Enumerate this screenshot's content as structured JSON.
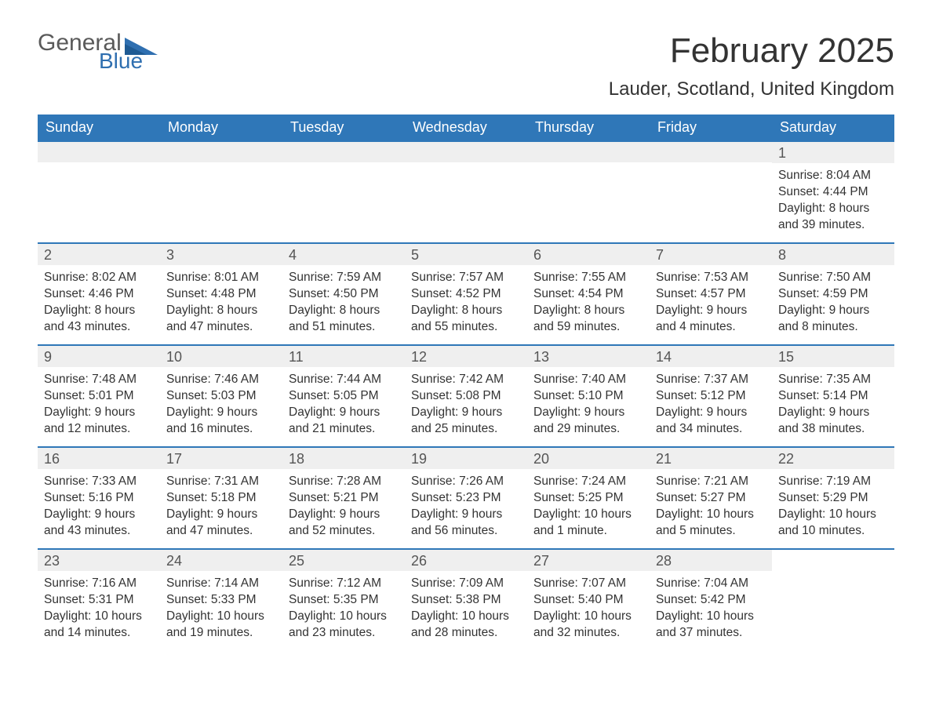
{
  "colors": {
    "header_bg": "#2f77b8",
    "header_text": "#ffffff",
    "day_num_bg": "#efefef",
    "day_num_text": "#555555",
    "border": "#2f77b8",
    "body_text": "#333333",
    "logo_gray": "#5a5a5a",
    "logo_blue": "#2f6fb0",
    "page_bg": "#ffffff"
  },
  "logo": {
    "word1": "General",
    "word2": "Blue"
  },
  "title": "February 2025",
  "location": "Lauder, Scotland, United Kingdom",
  "weekdays": [
    "Sunday",
    "Monday",
    "Tuesday",
    "Wednesday",
    "Thursday",
    "Friday",
    "Saturday"
  ],
  "layout": {
    "start_weekday_index": 6,
    "days_in_month": 28,
    "weeks": 5
  },
  "days": {
    "1": {
      "sunrise": "8:04 AM",
      "sunset": "4:44 PM",
      "daylight": "8 hours and 39 minutes."
    },
    "2": {
      "sunrise": "8:02 AM",
      "sunset": "4:46 PM",
      "daylight": "8 hours and 43 minutes."
    },
    "3": {
      "sunrise": "8:01 AM",
      "sunset": "4:48 PM",
      "daylight": "8 hours and 47 minutes."
    },
    "4": {
      "sunrise": "7:59 AM",
      "sunset": "4:50 PM",
      "daylight": "8 hours and 51 minutes."
    },
    "5": {
      "sunrise": "7:57 AM",
      "sunset": "4:52 PM",
      "daylight": "8 hours and 55 minutes."
    },
    "6": {
      "sunrise": "7:55 AM",
      "sunset": "4:54 PM",
      "daylight": "8 hours and 59 minutes."
    },
    "7": {
      "sunrise": "7:53 AM",
      "sunset": "4:57 PM",
      "daylight": "9 hours and 4 minutes."
    },
    "8": {
      "sunrise": "7:50 AM",
      "sunset": "4:59 PM",
      "daylight": "9 hours and 8 minutes."
    },
    "9": {
      "sunrise": "7:48 AM",
      "sunset": "5:01 PM",
      "daylight": "9 hours and 12 minutes."
    },
    "10": {
      "sunrise": "7:46 AM",
      "sunset": "5:03 PM",
      "daylight": "9 hours and 16 minutes."
    },
    "11": {
      "sunrise": "7:44 AM",
      "sunset": "5:05 PM",
      "daylight": "9 hours and 21 minutes."
    },
    "12": {
      "sunrise": "7:42 AM",
      "sunset": "5:08 PM",
      "daylight": "9 hours and 25 minutes."
    },
    "13": {
      "sunrise": "7:40 AM",
      "sunset": "5:10 PM",
      "daylight": "9 hours and 29 minutes."
    },
    "14": {
      "sunrise": "7:37 AM",
      "sunset": "5:12 PM",
      "daylight": "9 hours and 34 minutes."
    },
    "15": {
      "sunrise": "7:35 AM",
      "sunset": "5:14 PM",
      "daylight": "9 hours and 38 minutes."
    },
    "16": {
      "sunrise": "7:33 AM",
      "sunset": "5:16 PM",
      "daylight": "9 hours and 43 minutes."
    },
    "17": {
      "sunrise": "7:31 AM",
      "sunset": "5:18 PM",
      "daylight": "9 hours and 47 minutes."
    },
    "18": {
      "sunrise": "7:28 AM",
      "sunset": "5:21 PM",
      "daylight": "9 hours and 52 minutes."
    },
    "19": {
      "sunrise": "7:26 AM",
      "sunset": "5:23 PM",
      "daylight": "9 hours and 56 minutes."
    },
    "20": {
      "sunrise": "7:24 AM",
      "sunset": "5:25 PM",
      "daylight": "10 hours and 1 minute."
    },
    "21": {
      "sunrise": "7:21 AM",
      "sunset": "5:27 PM",
      "daylight": "10 hours and 5 minutes."
    },
    "22": {
      "sunrise": "7:19 AM",
      "sunset": "5:29 PM",
      "daylight": "10 hours and 10 minutes."
    },
    "23": {
      "sunrise": "7:16 AM",
      "sunset": "5:31 PM",
      "daylight": "10 hours and 14 minutes."
    },
    "24": {
      "sunrise": "7:14 AM",
      "sunset": "5:33 PM",
      "daylight": "10 hours and 19 minutes."
    },
    "25": {
      "sunrise": "7:12 AM",
      "sunset": "5:35 PM",
      "daylight": "10 hours and 23 minutes."
    },
    "26": {
      "sunrise": "7:09 AM",
      "sunset": "5:38 PM",
      "daylight": "10 hours and 28 minutes."
    },
    "27": {
      "sunrise": "7:07 AM",
      "sunset": "5:40 PM",
      "daylight": "10 hours and 32 minutes."
    },
    "28": {
      "sunrise": "7:04 AM",
      "sunset": "5:42 PM",
      "daylight": "10 hours and 37 minutes."
    }
  },
  "labels": {
    "sunrise_prefix": "Sunrise: ",
    "sunset_prefix": "Sunset: ",
    "daylight_prefix": "Daylight: "
  }
}
